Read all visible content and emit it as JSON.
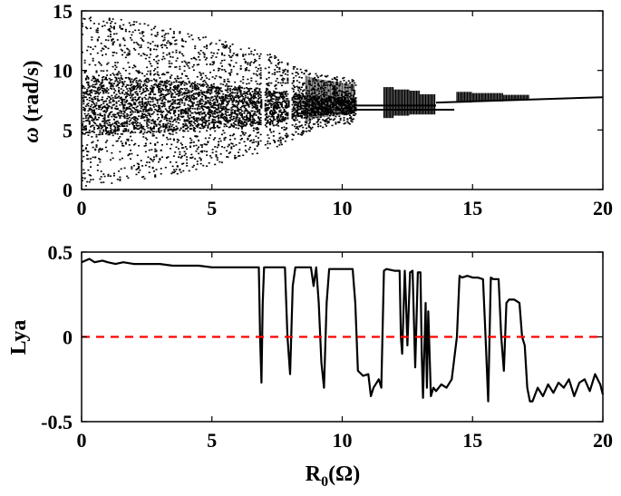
{
  "chart_data": [
    {
      "type": "scatter",
      "title": "",
      "xlabel": "",
      "ylabel": {
        "symbol": "ω",
        "text": " (rad/s)"
      },
      "xlim": [
        0,
        20
      ],
      "ylim": [
        0,
        15
      ],
      "xticks": [
        "0",
        "5",
        "10",
        "15",
        "20"
      ],
      "yticks": [
        "0",
        "5",
        "10",
        "15"
      ],
      "grid": false,
      "point_color": "#000000",
      "series": [
        {
          "description_free": true,
          "envelope": [
            {
              "r": 0.0,
              "lo": 0.3,
              "hi": 14.7
            },
            {
              "r": 2.0,
              "lo": 0.8,
              "hi": 14.2
            },
            {
              "r": 4.0,
              "lo": 1.5,
              "hi": 13.3
            },
            {
              "r": 6.0,
              "lo": 2.6,
              "hi": 12.2
            },
            {
              "r": 7.5,
              "lo": 3.6,
              "hi": 11.2
            },
            {
              "r": 8.0,
              "lo": 4.2,
              "hi": 10.5
            },
            {
              "r": 9.0,
              "lo": 5.2,
              "hi": 9.8
            },
            {
              "r": 10.5,
              "lo": 5.6,
              "hi": 9.3
            }
          ],
          "bands": [
            {
              "x0": 11.6,
              "x1": 12.0,
              "lo": 6.0,
              "hi": 8.6
            },
            {
              "x0": 12.0,
              "x1": 12.6,
              "lo": 6.2,
              "hi": 8.4
            },
            {
              "x0": 12.6,
              "x1": 13.0,
              "lo": 6.3,
              "hi": 8.3
            },
            {
              "x0": 13.0,
              "x1": 13.6,
              "lo": 6.3,
              "hi": 8.0
            },
            {
              "x0": 14.4,
              "x1": 15.0,
              "lo": 7.3,
              "hi": 8.2
            },
            {
              "x0": 15.0,
              "x1": 16.2,
              "lo": 7.4,
              "hi": 8.1
            },
            {
              "x0": 16.2,
              "x1": 17.2,
              "lo": 7.5,
              "hi": 7.95
            }
          ],
          "lines": [
            {
              "x0": 10.5,
              "x1": 14.3,
              "y": 6.7
            },
            {
              "x0": 10.5,
              "x1": 13.6,
              "y": 7.05
            },
            {
              "x0": 13.6,
              "x1": 20.0,
              "y0": 7.3,
              "y1": 7.75
            }
          ]
        }
      ]
    },
    {
      "type": "line",
      "title": "",
      "xlabel": {
        "base": "R",
        "sub": "0",
        "rest": "(Ω)"
      },
      "ylabel": "Lya",
      "xlim": [
        0,
        20
      ],
      "ylim": [
        -0.5,
        0.5
      ],
      "xticks": [
        "0",
        "5",
        "10",
        "15",
        "20"
      ],
      "yticks": [
        "0.5",
        "0",
        "-0.5"
      ],
      "grid": false,
      "series": [
        {
          "color": "#000000",
          "x": [
            0,
            0.3,
            0.5,
            0.8,
            1,
            1.3,
            1.6,
            2,
            2.5,
            3,
            3.5,
            4,
            4.5,
            5,
            5.5,
            6,
            6.5,
            6.8,
            6.85,
            6.9,
            6.95,
            7.0,
            7.5,
            7.8,
            7.9,
            8.0,
            8.1,
            8.2,
            8.5,
            8.8,
            8.9,
            9.0,
            9.1,
            9.2,
            9.3,
            9.4,
            9.5,
            9.6,
            10.0,
            10.4,
            10.5,
            10.6,
            10.8,
            11.0,
            11.1,
            11.2,
            11.4,
            11.5,
            11.6,
            11.7,
            12.0,
            12.2,
            12.25,
            12.3,
            12.4,
            12.45,
            12.5,
            12.6,
            12.7,
            12.8,
            12.9,
            13.0,
            13.05,
            13.1,
            13.2,
            13.25,
            13.3,
            13.4,
            13.5,
            13.6,
            13.8,
            14.0,
            14.2,
            14.4,
            14.5,
            14.6,
            14.8,
            15.0,
            15.2,
            15.4,
            15.5,
            15.6,
            15.7,
            15.8,
            16.0,
            16.1,
            16.2,
            16.3,
            16.4,
            16.6,
            16.8,
            16.9,
            17.0,
            17.1,
            17.2,
            17.3,
            17.5,
            17.7,
            17.9,
            18.1,
            18.3,
            18.5,
            18.7,
            18.9,
            19.1,
            19.3,
            19.5,
            19.7,
            19.9,
            20.0
          ],
          "y": [
            0.44,
            0.46,
            0.44,
            0.45,
            0.44,
            0.43,
            0.44,
            0.43,
            0.43,
            0.43,
            0.42,
            0.42,
            0.42,
            0.41,
            0.41,
            0.41,
            0.41,
            0.41,
            0.0,
            -0.27,
            0.2,
            0.41,
            0.41,
            0.41,
            0.0,
            -0.22,
            0.3,
            0.41,
            0.41,
            0.41,
            0.3,
            0.41,
            0.2,
            -0.15,
            -0.3,
            0.2,
            0.4,
            0.4,
            0.4,
            0.4,
            0.2,
            -0.2,
            -0.23,
            -0.22,
            -0.35,
            -0.3,
            -0.25,
            -0.3,
            0.39,
            0.4,
            0.39,
            0.39,
            0.0,
            -0.1,
            0.39,
            0.2,
            -0.05,
            0.38,
            0.39,
            -0.18,
            0.38,
            0.38,
            -0.1,
            -0.36,
            0.2,
            -0.3,
            0.15,
            -0.35,
            -0.3,
            -0.32,
            -0.28,
            -0.3,
            -0.25,
            0.0,
            0.36,
            0.35,
            0.36,
            0.35,
            0.35,
            0.34,
            0.0,
            -0.38,
            0.35,
            0.34,
            0.34,
            0.0,
            -0.2,
            0.2,
            0.22,
            0.22,
            0.2,
            0.0,
            -0.05,
            -0.3,
            -0.38,
            -0.38,
            -0.3,
            -0.35,
            -0.28,
            -0.33,
            -0.27,
            -0.3,
            -0.25,
            -0.35,
            -0.27,
            -0.25,
            -0.32,
            -0.22,
            -0.28,
            -0.34
          ]
        },
        {
          "color": "#ff0000",
          "style": "dashed",
          "x": [
            0,
            20
          ],
          "y": [
            0,
            0
          ]
        }
      ]
    }
  ]
}
